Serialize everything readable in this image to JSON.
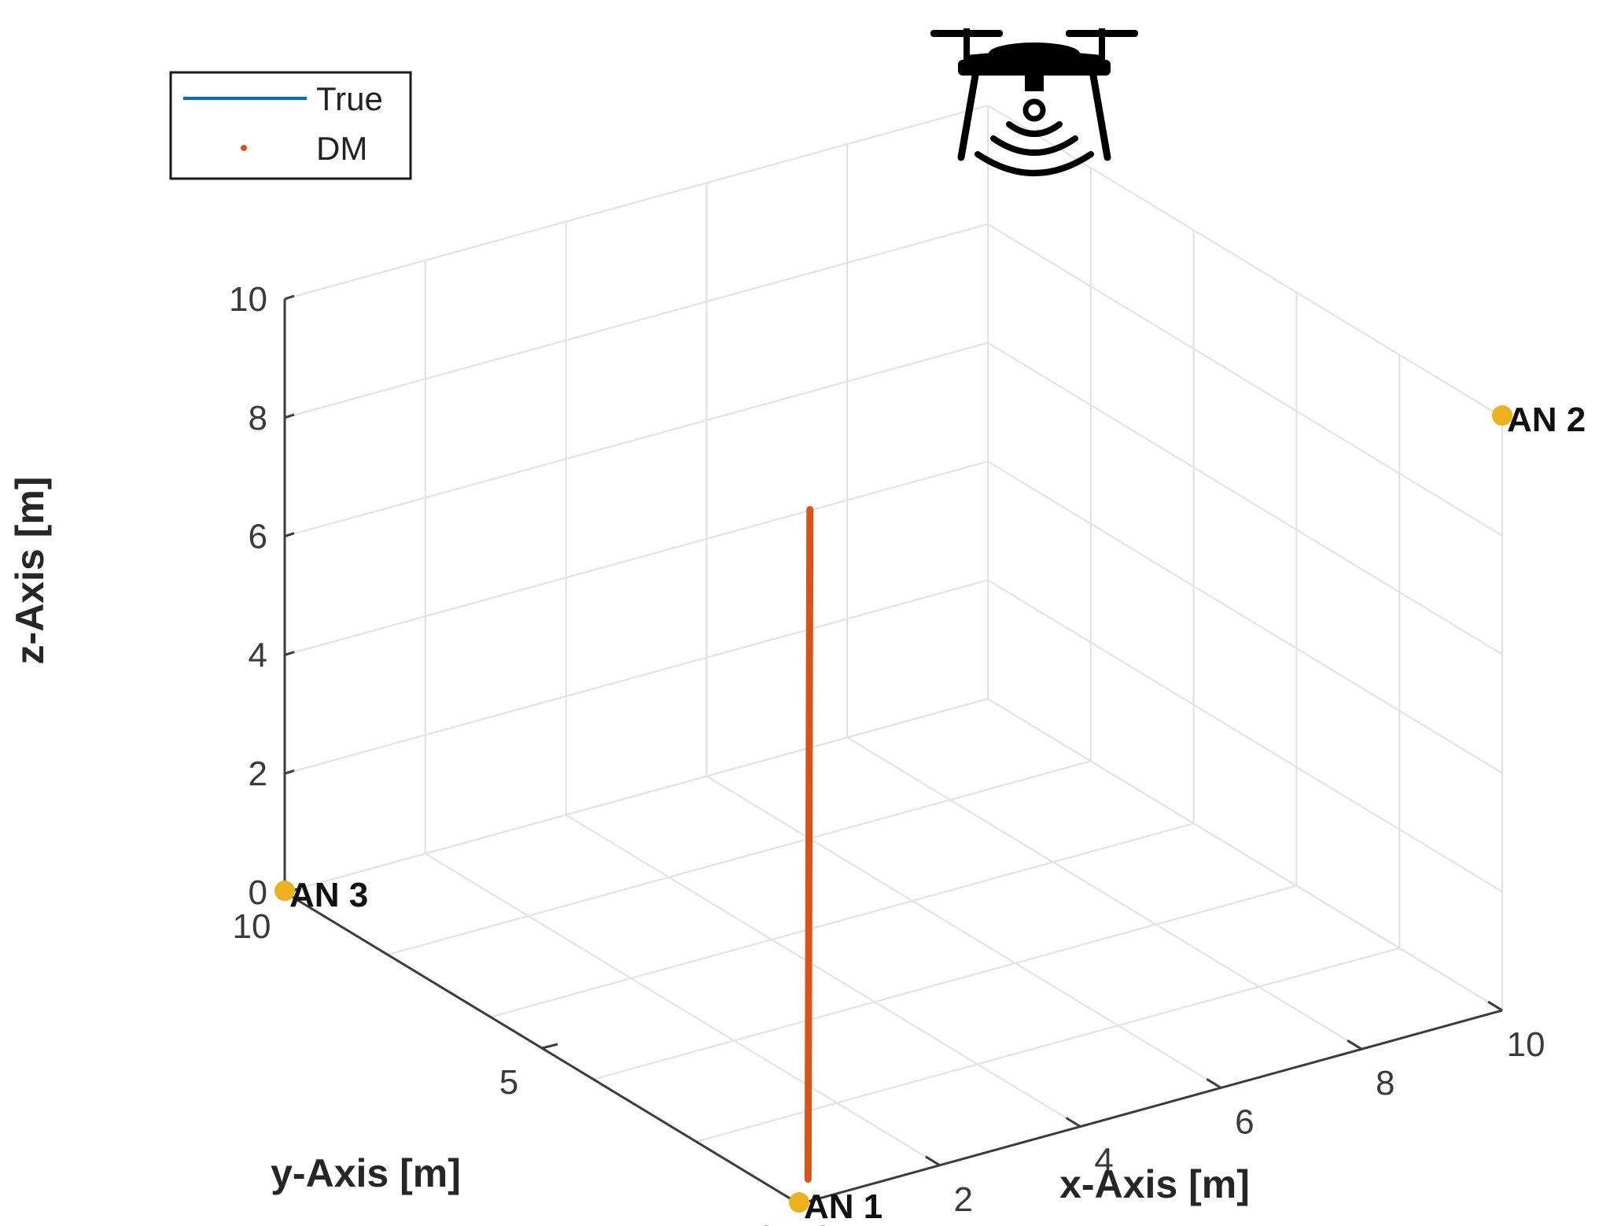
{
  "chart_data": {
    "type": "line",
    "title": "",
    "xlabel": "x-Axis [m]",
    "ylabel": "y-Axis [m]",
    "zlabel": "z-Axis [m]",
    "xlim": [
      0,
      10
    ],
    "ylim": [
      0,
      10
    ],
    "zlim": [
      0,
      10
    ],
    "x_ticks": [
      "0",
      "2",
      "4",
      "6",
      "8",
      "10"
    ],
    "y_ticks": [
      "0",
      "5",
      "10"
    ],
    "z_ticks": [
      "0",
      "2",
      "4",
      "6",
      "8",
      "10"
    ],
    "grid": true,
    "legend_position": "top-left",
    "legend": [
      {
        "label": "True",
        "color": "#0072BD",
        "marker": "line"
      },
      {
        "label": "DM",
        "color": "#D95319",
        "marker": "dot"
      }
    ],
    "series": [
      {
        "name": "DM",
        "color": "#D95319",
        "points": [
          {
            "x": 0.2,
            "y": 0.1,
            "z": 0.3
          },
          {
            "x": 0.3,
            "y": 0.2,
            "z": 11.5
          }
        ]
      }
    ],
    "anchors": [
      {
        "label": "AN 1",
        "x": 0,
        "y": 0,
        "z": 0,
        "color": "#EDB120"
      },
      {
        "label": "AN 2",
        "x": 10,
        "y": 0,
        "z": 10,
        "color": "#EDB120"
      },
      {
        "label": "AN 3",
        "x": 0,
        "y": 10,
        "z": 0,
        "color": "#EDB120"
      }
    ],
    "drone_icon": "drone-icon"
  }
}
